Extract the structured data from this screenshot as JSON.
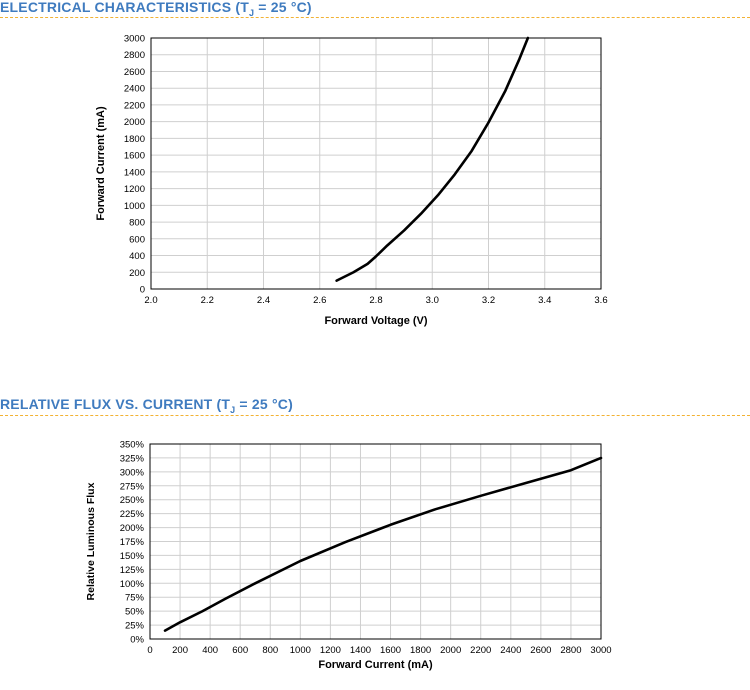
{
  "sections": [
    {
      "title_main": "ELECTRICAL CHARACTERISTICS (T",
      "title_sub": "J",
      "title_tail": " = 25 °C)"
    },
    {
      "title_main": "RELATIVE FLUX VS. CURRENT (T",
      "title_sub": "J",
      "title_tail": " = 25 °C)"
    }
  ],
  "colors": {
    "title": "#3f7bbf",
    "divider": "#f2b233",
    "grid": "#cfcfcf",
    "curve": "#000000"
  },
  "chart_data": [
    {
      "type": "line",
      "title": "",
      "xlabel": "Forward Voltage (V)",
      "ylabel": "Forward Current (mA)",
      "xlim": [
        2.0,
        3.6
      ],
      "ylim": [
        0,
        3000
      ],
      "xticks": [
        "2.0",
        "2.2",
        "2.4",
        "2.6",
        "2.8",
        "3.0",
        "3.2",
        "3.4",
        "3.6"
      ],
      "yticks": [
        "0",
        "200",
        "400",
        "600",
        "800",
        "1000",
        "1200",
        "1400",
        "1600",
        "1800",
        "2000",
        "2200",
        "2400",
        "2600",
        "2800",
        "3000"
      ],
      "grid": true,
      "series": [
        {
          "x": [
            2.66,
            2.72,
            2.77,
            2.8,
            2.84,
            2.9,
            2.96,
            3.02,
            3.08,
            3.14,
            3.2,
            3.26,
            3.31,
            3.34
          ],
          "y": [
            100,
            200,
            300,
            390,
            520,
            700,
            900,
            1120,
            1370,
            1650,
            1990,
            2370,
            2750,
            3000
          ]
        }
      ]
    },
    {
      "type": "line",
      "title": "",
      "xlabel": "Forward Current (mA)",
      "ylabel": "Relative Luminous Flux",
      "xlim": [
        0,
        3000
      ],
      "ylim": [
        0,
        350
      ],
      "xticks": [
        "0",
        "200",
        "400",
        "600",
        "800",
        "1000",
        "1200",
        "1400",
        "1600",
        "1800",
        "2000",
        "2200",
        "2400",
        "2600",
        "2800",
        "3000"
      ],
      "yticks": [
        "0%",
        "25%",
        "50%",
        "75%",
        "100%",
        "125%",
        "150%",
        "175%",
        "200%",
        "225%",
        "250%",
        "275%",
        "300%",
        "325%",
        "350%"
      ],
      "grid": true,
      "series": [
        {
          "x": [
            100,
            200,
            350,
            500,
            700,
            1000,
            1300,
            1600,
            1900,
            2200,
            2500,
            2800,
            3000
          ],
          "y": [
            15,
            30,
            50,
            72,
            100,
            140,
            174,
            205,
            233,
            257,
            280,
            303,
            325
          ]
        }
      ]
    }
  ]
}
